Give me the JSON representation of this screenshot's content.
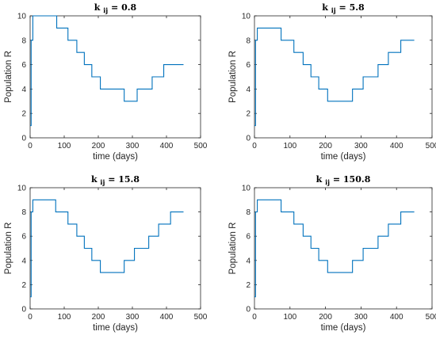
{
  "colors": {
    "series": "#0072BD",
    "axis": "#262626"
  },
  "chart_data": [
    {
      "type": "line",
      "title_prefix": "k",
      "title_subscript": "ij",
      "title_value": "= 0.8",
      "xlabel": "time (days)",
      "ylabel": "Population R",
      "xlim": [
        0,
        500
      ],
      "ylim": [
        0,
        10
      ],
      "xticks": [
        0,
        100,
        200,
        300,
        400,
        500
      ],
      "yticks": [
        0,
        2,
        4,
        6,
        8,
        10
      ],
      "grid": false,
      "series": [
        {
          "x": [
            0,
            3,
            3,
            8,
            8,
            78,
            78,
            111,
            111,
            137,
            137,
            159,
            159,
            181,
            181,
            206,
            206,
            276,
            276,
            314,
            314,
            358,
            358,
            392,
            392,
            450
          ],
          "y": [
            1,
            1,
            8,
            8,
            10,
            10,
            9,
            9,
            8,
            8,
            7,
            7,
            6,
            6,
            5,
            5,
            4,
            4,
            3,
            3,
            4,
            4,
            5,
            5,
            6,
            6
          ]
        }
      ]
    },
    {
      "type": "line",
      "title_prefix": "k",
      "title_subscript": "ij",
      "title_value": "= 5.8",
      "xlabel": "time (days)",
      "ylabel": "Population R",
      "xlim": [
        0,
        500
      ],
      "ylim": [
        0,
        10
      ],
      "xticks": [
        0,
        100,
        200,
        300,
        400,
        500
      ],
      "yticks": [
        0,
        2,
        4,
        6,
        8,
        10
      ],
      "grid": false,
      "series": [
        {
          "x": [
            0,
            3,
            3,
            8,
            8,
            75,
            75,
            111,
            111,
            137,
            137,
            159,
            159,
            181,
            181,
            206,
            206,
            276,
            276,
            306,
            306,
            348,
            348,
            377,
            377,
            412,
            412,
            450
          ],
          "y": [
            1,
            1,
            8,
            8,
            9,
            9,
            8,
            8,
            7,
            7,
            6,
            6,
            5,
            5,
            4,
            4,
            3,
            3,
            4,
            4,
            5,
            5,
            6,
            6,
            7,
            7,
            8,
            8
          ]
        }
      ]
    },
    {
      "type": "line",
      "title_prefix": "k",
      "title_subscript": "ij",
      "title_value": "= 15.8",
      "xlabel": "time (days)",
      "ylabel": "Population R",
      "xlim": [
        0,
        500
      ],
      "ylim": [
        0,
        10
      ],
      "xticks": [
        0,
        100,
        200,
        300,
        400,
        500
      ],
      "yticks": [
        0,
        2,
        4,
        6,
        8,
        10
      ],
      "grid": false,
      "series": [
        {
          "x": [
            0,
            3,
            3,
            8,
            8,
            75,
            75,
            111,
            111,
            137,
            137,
            159,
            159,
            181,
            181,
            206,
            206,
            276,
            276,
            306,
            306,
            348,
            348,
            377,
            377,
            412,
            412,
            450
          ],
          "y": [
            1,
            1,
            8,
            8,
            9,
            9,
            8,
            8,
            7,
            7,
            6,
            6,
            5,
            5,
            4,
            4,
            3,
            3,
            4,
            4,
            5,
            5,
            6,
            6,
            7,
            7,
            8,
            8
          ]
        }
      ]
    },
    {
      "type": "line",
      "title_prefix": "k",
      "title_subscript": "ij",
      "title_value": "= 150.8",
      "xlabel": "time (days)",
      "ylabel": "Population R",
      "xlim": [
        0,
        500
      ],
      "ylim": [
        0,
        10
      ],
      "xticks": [
        0,
        100,
        200,
        300,
        400,
        500
      ],
      "yticks": [
        0,
        2,
        4,
        6,
        8,
        10
      ],
      "grid": false,
      "series": [
        {
          "x": [
            0,
            3,
            3,
            8,
            8,
            75,
            75,
            111,
            111,
            137,
            137,
            159,
            159,
            181,
            181,
            206,
            206,
            276,
            276,
            306,
            306,
            348,
            348,
            377,
            377,
            412,
            412,
            450
          ],
          "y": [
            1,
            1,
            8,
            8,
            9,
            9,
            8,
            8,
            7,
            7,
            6,
            6,
            5,
            5,
            4,
            4,
            3,
            3,
            4,
            4,
            5,
            5,
            6,
            6,
            7,
            7,
            8,
            8
          ]
        }
      ]
    }
  ]
}
